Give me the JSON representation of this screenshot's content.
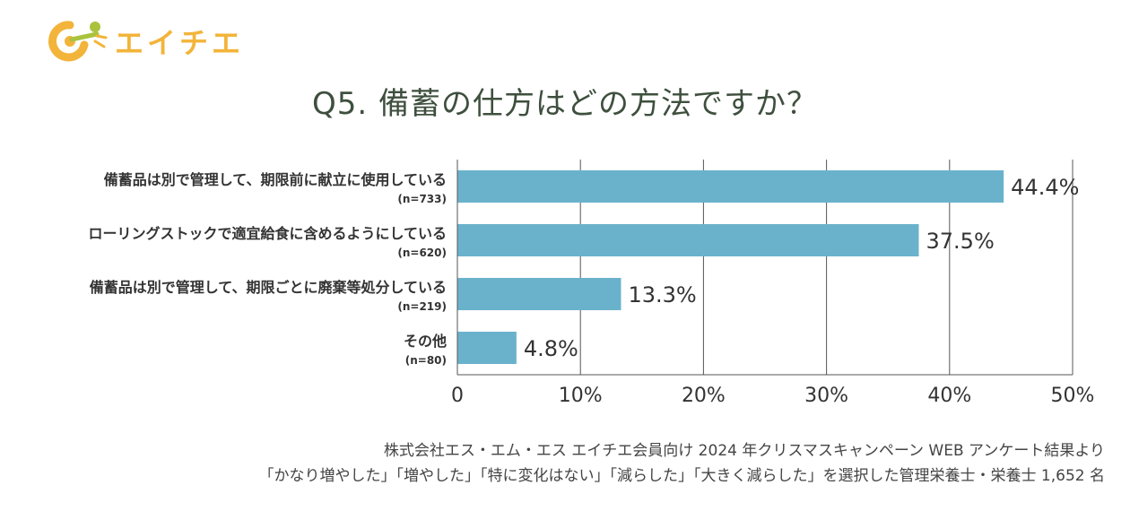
{
  "brand": {
    "name": "エイチエ",
    "colors": {
      "yellow": "#f2b43a",
      "green": "#a9c33d"
    }
  },
  "title": "Q5. 備蓄の仕方はどの方法ですか？",
  "chart_data": {
    "type": "bar",
    "orientation": "horizontal",
    "categories": [
      {
        "label": "備蓄品は別で管理して、期限前に献立に使用している",
        "n": "(n=733)"
      },
      {
        "label": "ローリングストックで適宜給食に含めるようにしている",
        "n": "(n=620)"
      },
      {
        "label": "備蓄品は別で管理して、期限ごとに廃棄等処分している",
        "n": "(n=219)"
      },
      {
        "label": "その他",
        "n": "(n=80)"
      }
    ],
    "values": [
      44.4,
      37.5,
      13.3,
      4.8
    ],
    "value_labels": [
      "44.4%",
      "37.5%",
      "13.3%",
      "4.8%"
    ],
    "xlim": [
      0,
      50
    ],
    "xticks": [
      "0",
      "10%",
      "20%",
      "30%",
      "40%",
      "50%"
    ],
    "xtick_values": [
      0,
      10,
      20,
      30,
      40,
      50
    ],
    "grid": true,
    "bar_color": "#6ab2cc"
  },
  "footer": {
    "line1": "株式会社エス・エム・エス エイチエ会員向け 2024 年クリスマスキャンペーン WEB アンケート結果より",
    "line2": "「かなり増やした」「増やした」「特に変化はない」「減らした」「大きく減らした」を選択した管理栄養士・栄養士 1,652 名"
  }
}
